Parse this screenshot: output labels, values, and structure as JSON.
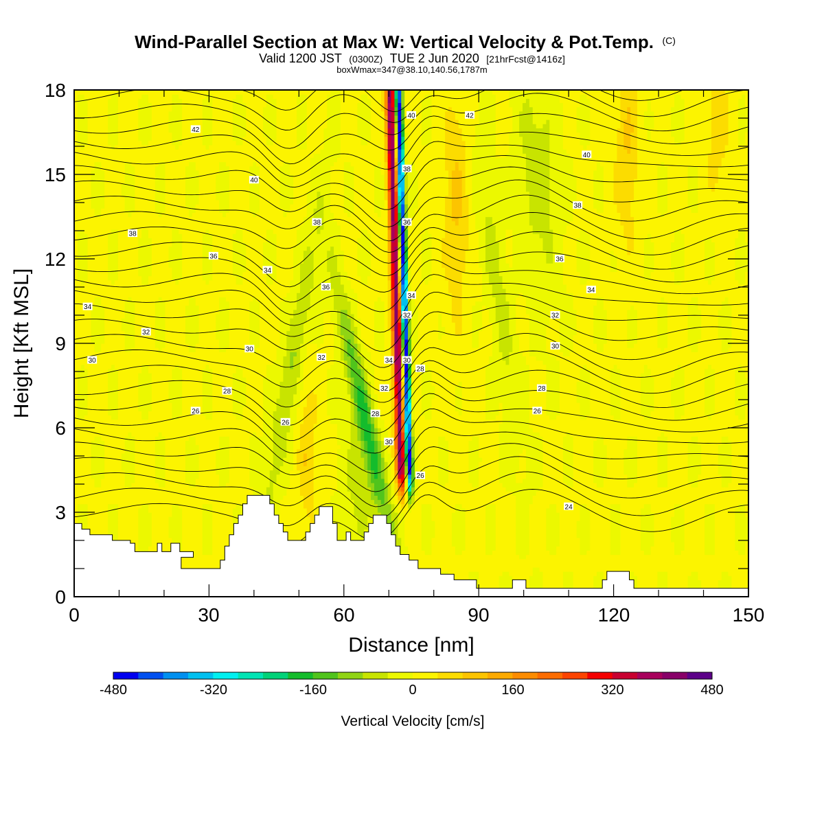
{
  "chart_data": {
    "type": "heatmap",
    "title": "Wind-Parallel Section at Max W: Vertical Velocity & Pot.Temp.",
    "title_mark": "(C)",
    "subtitle": {
      "valid": "Valid 1200 JST",
      "utc": "(0300Z)",
      "date": "TUE 2 Jun 2020",
      "forecast": "[21hrFcst@1416z]",
      "boxw": "boxWmax=347@38.10,140.56,1787m"
    },
    "xlabel": "Distance [nm]",
    "ylabel": "Height [Kft MSL]",
    "xlim": [
      0,
      150
    ],
    "ylim": [
      0,
      18
    ],
    "x_ticks": [
      "0",
      "30",
      "60",
      "90",
      "120",
      "150"
    ],
    "y_ticks": [
      "0",
      "3",
      "6",
      "9",
      "12",
      "15",
      "18"
    ],
    "colorbar": {
      "title": "Vertical Velocity [cm/s]",
      "tick_labels": [
        "-480",
        "-320",
        "-160",
        "0",
        "160",
        "320",
        "480"
      ],
      "levels": [
        -480,
        -440,
        -400,
        -360,
        -320,
        -280,
        -240,
        -200,
        -160,
        -120,
        -80,
        -40,
        0,
        40,
        80,
        120,
        160,
        200,
        240,
        280,
        320,
        360,
        400,
        440,
        480
      ],
      "colors": [
        "#0000f0",
        "#0050f0",
        "#0090f0",
        "#00c0f0",
        "#00f0f0",
        "#00e4b4",
        "#00d278",
        "#14bc2c",
        "#50c41c",
        "#90d414",
        "#c8e400",
        "#ecf800",
        "#fcf400",
        "#fcdc00",
        "#fcc400",
        "#fcaa00",
        "#fc8c00",
        "#fc6c00",
        "#fc4400",
        "#f40000",
        "#c80030",
        "#a8005c",
        "#880068",
        "#5c0088"
      ]
    },
    "theta_labels": [
      {
        "x": 3,
        "z": 10.3,
        "text": "34"
      },
      {
        "x": 4,
        "z": 8.4,
        "text": "30"
      },
      {
        "x": 16,
        "z": 9.4,
        "text": "32"
      },
      {
        "x": 13,
        "z": 12.9,
        "text": "38"
      },
      {
        "x": 27,
        "z": 16.6,
        "text": "42"
      },
      {
        "x": 40,
        "z": 14.8,
        "text": "40"
      },
      {
        "x": 31,
        "z": 12.1,
        "text": "36"
      },
      {
        "x": 43,
        "z": 11.6,
        "text": "34"
      },
      {
        "x": 39,
        "z": 8.8,
        "text": "30"
      },
      {
        "x": 34,
        "z": 7.3,
        "text": "28"
      },
      {
        "x": 27,
        "z": 6.6,
        "text": "26"
      },
      {
        "x": 47,
        "z": 6.2,
        "text": "26"
      },
      {
        "x": 54,
        "z": 13.3,
        "text": "38"
      },
      {
        "x": 56,
        "z": 11.0,
        "text": "36"
      },
      {
        "x": 55,
        "z": 8.5,
        "text": "32"
      },
      {
        "x": 70,
        "z": 8.4,
        "text": "34"
      },
      {
        "x": 69,
        "z": 7.4,
        "text": "32"
      },
      {
        "x": 67,
        "z": 6.5,
        "text": "28"
      },
      {
        "x": 70,
        "z": 5.5,
        "text": "30"
      },
      {
        "x": 75,
        "z": 17.1,
        "text": "40"
      },
      {
        "x": 74,
        "z": 15.2,
        "text": "38"
      },
      {
        "x": 74,
        "z": 13.3,
        "text": "36"
      },
      {
        "x": 75,
        "z": 10.7,
        "text": "34"
      },
      {
        "x": 74,
        "z": 10.0,
        "text": "32"
      },
      {
        "x": 74,
        "z": 8.4,
        "text": "30"
      },
      {
        "x": 77,
        "z": 8.1,
        "text": "28"
      },
      {
        "x": 77,
        "z": 4.3,
        "text": "26"
      },
      {
        "x": 88,
        "z": 17.1,
        "text": "42"
      },
      {
        "x": 114,
        "z": 15.7,
        "text": "40"
      },
      {
        "x": 112,
        "z": 13.9,
        "text": "38"
      },
      {
        "x": 108,
        "z": 12.0,
        "text": "36"
      },
      {
        "x": 115,
        "z": 10.9,
        "text": "34"
      },
      {
        "x": 107,
        "z": 10.0,
        "text": "32"
      },
      {
        "x": 107,
        "z": 8.9,
        "text": "30"
      },
      {
        "x": 104,
        "z": 7.4,
        "text": "28"
      },
      {
        "x": 103,
        "z": 6.6,
        "text": "26"
      },
      {
        "x": 110,
        "z": 3.2,
        "text": "24"
      }
    ],
    "terrain": [
      [
        0,
        2.6
      ],
      [
        1.7,
        2.6
      ],
      [
        1.7,
        2.4
      ],
      [
        3.5,
        2.4
      ],
      [
        3.5,
        2.2
      ],
      [
        8.5,
        2.2
      ],
      [
        8.5,
        2.0
      ],
      [
        12.5,
        2.0
      ],
      [
        12.5,
        1.9
      ],
      [
        13.5,
        1.9
      ],
      [
        13.5,
        1.6
      ],
      [
        18.5,
        1.6
      ],
      [
        18.5,
        1.9
      ],
      [
        19.5,
        1.9
      ],
      [
        19.5,
        1.6
      ],
      [
        21.5,
        1.6
      ],
      [
        21.5,
        1.9
      ],
      [
        23.5,
        1.9
      ],
      [
        23.5,
        1.6
      ],
      [
        23.5,
        1.6
      ],
      [
        26.5,
        1.6
      ],
      [
        26.5,
        1.4
      ],
      [
        23.8,
        1.4
      ],
      [
        23.8,
        1.0
      ],
      [
        32.5,
        1.0
      ],
      [
        32.5,
        1.3
      ],
      [
        33.5,
        1.3
      ],
      [
        33.5,
        1.8
      ],
      [
        34.5,
        1.8
      ],
      [
        34.5,
        2.2
      ],
      [
        35.5,
        2.2
      ],
      [
        35.5,
        2.6
      ],
      [
        36.5,
        2.6
      ],
      [
        36.5,
        2.9
      ],
      [
        37.5,
        2.9
      ],
      [
        37.5,
        3.3
      ],
      [
        38.5,
        3.3
      ],
      [
        38.5,
        3.6
      ],
      [
        43.5,
        3.6
      ],
      [
        43.5,
        3.3
      ],
      [
        44.5,
        3.3
      ],
      [
        44.5,
        2.9
      ],
      [
        45.5,
        2.9
      ],
      [
        45.5,
        2.6
      ],
      [
        46.5,
        2.6
      ],
      [
        46.5,
        2.3
      ],
      [
        47.5,
        2.3
      ],
      [
        47.5,
        2.0
      ],
      [
        51.5,
        2.0
      ],
      [
        51.5,
        2.3
      ],
      [
        52.5,
        2.3
      ],
      [
        52.5,
        2.6
      ],
      [
        53.5,
        2.6
      ],
      [
        53.5,
        2.9
      ],
      [
        54.5,
        2.9
      ],
      [
        54.5,
        3.2
      ],
      [
        57.5,
        3.2
      ],
      [
        57.5,
        2.6
      ],
      [
        58.5,
        2.6
      ],
      [
        58.5,
        2.0
      ],
      [
        60.5,
        2.0
      ],
      [
        60.5,
        2.3
      ],
      [
        61.5,
        2.3
      ],
      [
        61.5,
        2.0
      ],
      [
        64.5,
        2.0
      ],
      [
        64.5,
        2.3
      ],
      [
        65.5,
        2.3
      ],
      [
        65.5,
        2.6
      ],
      [
        66.5,
        2.6
      ],
      [
        66.5,
        2.9
      ],
      [
        69.5,
        2.9
      ],
      [
        69.5,
        2.6
      ],
      [
        70.5,
        2.6
      ],
      [
        70.5,
        2.2
      ],
      [
        71.5,
        2.2
      ],
      [
        71.5,
        1.8
      ],
      [
        72.5,
        1.8
      ],
      [
        72.5,
        1.5
      ],
      [
        74.5,
        1.5
      ],
      [
        74.5,
        1.3
      ],
      [
        76.5,
        1.3
      ],
      [
        76.5,
        1.0
      ],
      [
        81.5,
        1.0
      ],
      [
        81.5,
        0.8
      ],
      [
        84.5,
        0.8
      ],
      [
        84.5,
        0.6
      ],
      [
        89.5,
        0.6
      ],
      [
        89.5,
        0.3
      ],
      [
        97.5,
        0.3
      ],
      [
        97.5,
        0.6
      ],
      [
        100.5,
        0.6
      ],
      [
        100.5,
        0.3
      ],
      [
        117.5,
        0.3
      ],
      [
        117.5,
        0.6
      ],
      [
        118.5,
        0.6
      ],
      [
        118.5,
        0.9
      ],
      [
        123.5,
        0.9
      ],
      [
        123.5,
        0.6
      ],
      [
        124.5,
        0.6
      ],
      [
        124.5,
        0.3
      ],
      [
        150,
        0.3
      ]
    ]
  }
}
